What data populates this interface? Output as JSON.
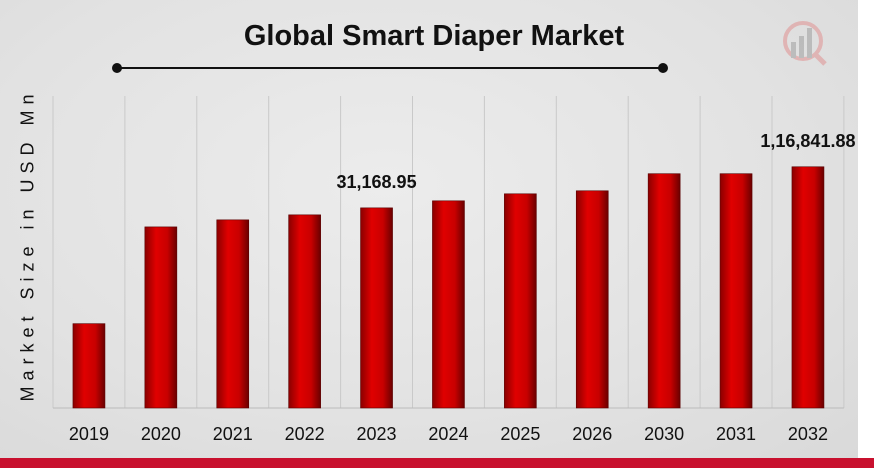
{
  "chart_data": {
    "type": "bar",
    "title": "Global Smart Diaper Market",
    "ylabel": "Market Size in USD Mn",
    "xlabel": "",
    "categories": [
      "2019",
      "2020",
      "2021",
      "2022",
      "2023",
      "2024",
      "2025",
      "2026",
      "2030",
      "2031",
      "2032"
    ],
    "values": [
      753,
      16900,
      21200,
      24900,
      31168.95,
      39100,
      49000,
      54000,
      93500,
      93500,
      116841.88
    ],
    "yscale": "log",
    "ylim": [
      50,
      1000000
    ],
    "grid": "vertical",
    "annotations": [
      {
        "category": "2023",
        "text": "31,168.95"
      },
      {
        "category": "2032",
        "text": "1,16,841.88"
      }
    ],
    "colors": {
      "bar": "#d40000",
      "bar_dark": "#7a0000",
      "accent": "#c8102e"
    }
  }
}
